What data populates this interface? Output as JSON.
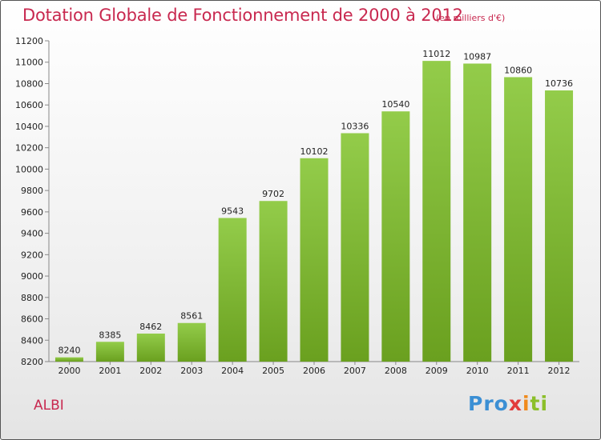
{
  "chart_data": {
    "type": "bar",
    "title": "Dotation Globale de Fonctionnement de 2000 à 2012",
    "subtitle": "(en milliers d'€)",
    "categories": [
      "2000",
      "2001",
      "2002",
      "2003",
      "2004",
      "2005",
      "2006",
      "2007",
      "2008",
      "2009",
      "2010",
      "2011",
      "2012"
    ],
    "values": [
      8240,
      8385,
      8462,
      8561,
      9543,
      9702,
      10102,
      10336,
      10540,
      11012,
      10987,
      10860,
      10736
    ],
    "ylim": [
      8200,
      11200
    ],
    "yticks": [
      8200,
      8400,
      8600,
      8800,
      9000,
      9200,
      9400,
      9600,
      9800,
      10000,
      10200,
      10400,
      10600,
      10800,
      11000,
      11200
    ],
    "grid": false,
    "bar_color": "#7ab52f"
  },
  "footer": {
    "place": "ALBI",
    "logo_text": [
      "Pro",
      "x",
      "i",
      "ti"
    ]
  }
}
